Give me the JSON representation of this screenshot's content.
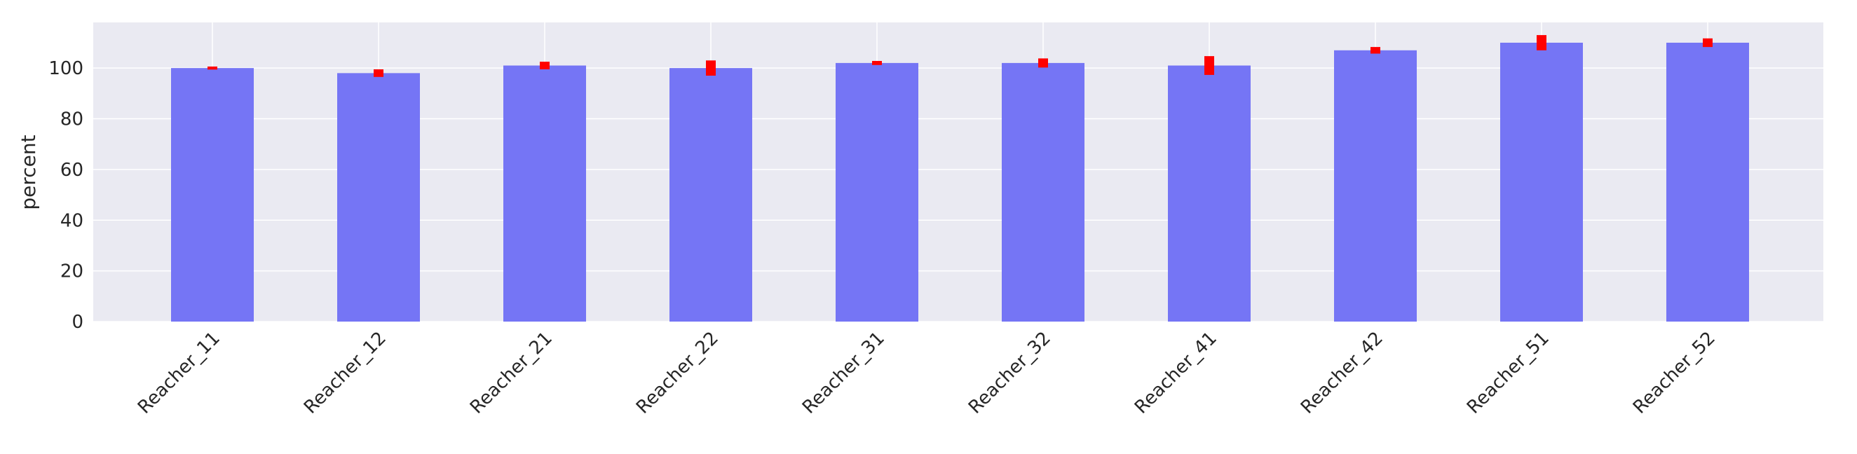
{
  "chart_data": {
    "type": "bar",
    "title": "",
    "xlabel": "",
    "ylabel": "percent",
    "ylim": [
      0,
      118
    ],
    "yticks": [
      0,
      20,
      40,
      60,
      80,
      100
    ],
    "grid": true,
    "categories": [
      "Reacher_11",
      "Reacher_12",
      "Reacher_21",
      "Reacher_22",
      "Reacher_31",
      "Reacher_32",
      "Reacher_41",
      "Reacher_42",
      "Reacher_51",
      "Reacher_52"
    ],
    "series": [
      {
        "values": [
          100,
          98,
          101,
          100,
          102,
          102,
          101,
          107,
          110,
          110
        ],
        "errors": [
          0.6,
          1.5,
          1.5,
          3.0,
          0.8,
          1.8,
          3.7,
          1.3,
          3.0,
          1.7
        ]
      }
    ],
    "colors": {
      "bar": "#7575f5",
      "error": "#ff0000",
      "plot_background": "#eaeaf2",
      "grid": "#ffffff"
    }
  }
}
